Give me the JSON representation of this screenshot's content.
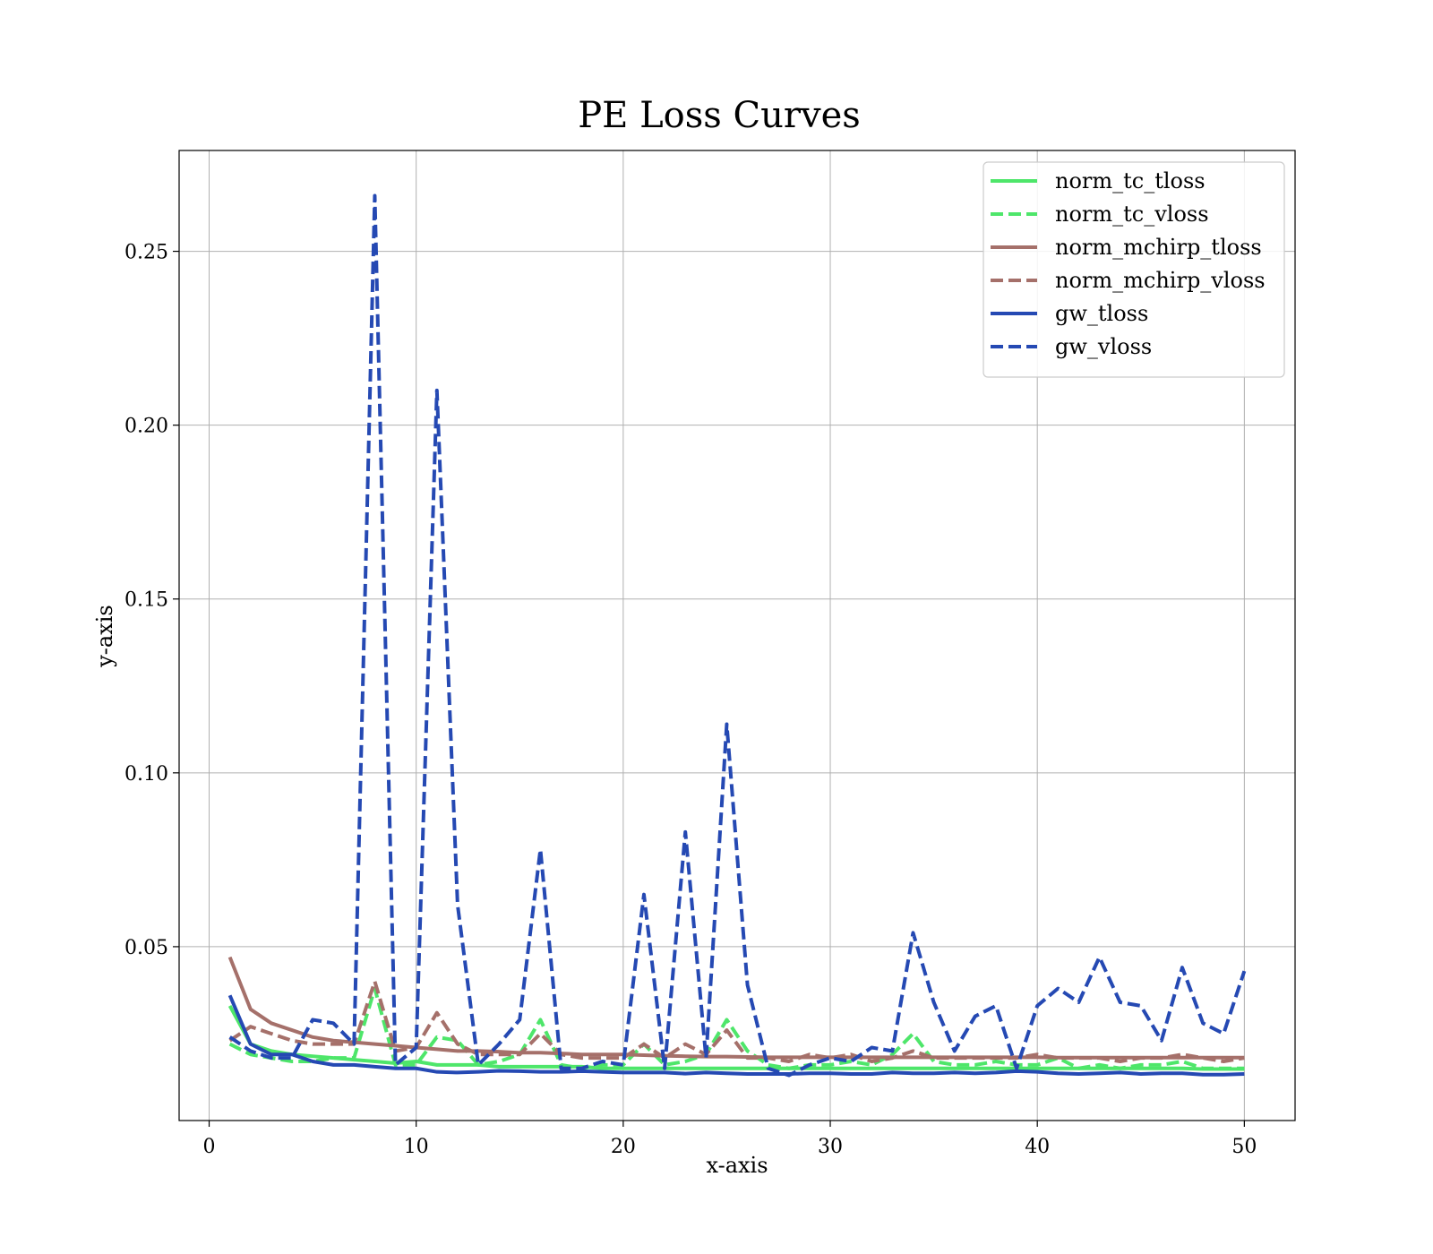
{
  "chart_data": {
    "type": "line",
    "title": "PE Loss Curves",
    "xlabel": "x-axis",
    "ylabel": "y-axis",
    "xlim": [
      -1.45,
      52.45
    ],
    "ylim": [
      0.0,
      0.279
    ],
    "xticks": [
      0,
      10,
      20,
      30,
      40,
      50
    ],
    "yticks": [
      0.05,
      0.1,
      0.15,
      0.2,
      0.25
    ],
    "xtick_labels": [
      "0",
      "10",
      "20",
      "30",
      "40",
      "50"
    ],
    "ytick_labels": [
      "0.05",
      "0.10",
      "0.15",
      "0.20",
      "0.25"
    ],
    "grid": true,
    "legend_position": "top-right",
    "x": [
      1,
      2,
      3,
      4,
      5,
      6,
      7,
      8,
      9,
      10,
      11,
      12,
      13,
      14,
      15,
      16,
      17,
      18,
      19,
      20,
      21,
      22,
      23,
      24,
      25,
      26,
      27,
      28,
      29,
      30,
      31,
      32,
      33,
      34,
      35,
      36,
      37,
      38,
      39,
      40,
      41,
      42,
      43,
      44,
      45,
      46,
      47,
      48,
      49,
      50
    ],
    "series": [
      {
        "name": "norm_tc_tloss",
        "color": "#4ee66a",
        "dash": "solid",
        "values": [
          0.033,
          0.022,
          0.02,
          0.019,
          0.0185,
          0.018,
          0.0175,
          0.017,
          0.0165,
          0.017,
          0.016,
          0.016,
          0.016,
          0.0155,
          0.0155,
          0.0155,
          0.0155,
          0.0155,
          0.015,
          0.015,
          0.015,
          0.015,
          0.015,
          0.015,
          0.015,
          0.015,
          0.015,
          0.015,
          0.015,
          0.015,
          0.015,
          0.015,
          0.015,
          0.015,
          0.015,
          0.015,
          0.015,
          0.015,
          0.015,
          0.015,
          0.015,
          0.015,
          0.015,
          0.015,
          0.015,
          0.015,
          0.015,
          0.0148,
          0.0148,
          0.0148
        ]
      },
      {
        "name": "norm_tc_vloss",
        "color": "#4ee66a",
        "dash": "dashed",
        "values": [
          0.022,
          0.019,
          0.018,
          0.017,
          0.017,
          0.018,
          0.018,
          0.038,
          0.016,
          0.016,
          0.024,
          0.023,
          0.016,
          0.017,
          0.019,
          0.029,
          0.016,
          0.015,
          0.016,
          0.016,
          0.022,
          0.016,
          0.017,
          0.019,
          0.029,
          0.02,
          0.016,
          0.015,
          0.016,
          0.016,
          0.017,
          0.016,
          0.019,
          0.025,
          0.017,
          0.016,
          0.016,
          0.017,
          0.016,
          0.016,
          0.018,
          0.015,
          0.016,
          0.015,
          0.016,
          0.016,
          0.017,
          0.015,
          0.015,
          0.015
        ]
      },
      {
        "name": "norm_mchirp_tloss",
        "color": "#a5706a",
        "dash": "solid",
        "values": [
          0.047,
          0.032,
          0.028,
          0.026,
          0.024,
          0.023,
          0.0225,
          0.022,
          0.0215,
          0.021,
          0.0205,
          0.02,
          0.02,
          0.0198,
          0.0195,
          0.0195,
          0.0193,
          0.019,
          0.019,
          0.019,
          0.0188,
          0.0186,
          0.0185,
          0.0184,
          0.0184,
          0.0183,
          0.0182,
          0.0182,
          0.0182,
          0.0182,
          0.0182,
          0.0182,
          0.0182,
          0.0182,
          0.0182,
          0.0182,
          0.0182,
          0.0182,
          0.0182,
          0.0182,
          0.0181,
          0.0181,
          0.0181,
          0.0181,
          0.0181,
          0.0181,
          0.0181,
          0.0181,
          0.0181,
          0.0181
        ]
      },
      {
        "name": "norm_mchirp_vloss",
        "color": "#a5706a",
        "dash": "dashed",
        "values": [
          0.023,
          0.027,
          0.025,
          0.023,
          0.022,
          0.022,
          0.022,
          0.04,
          0.02,
          0.021,
          0.031,
          0.022,
          0.019,
          0.019,
          0.019,
          0.025,
          0.019,
          0.018,
          0.018,
          0.018,
          0.022,
          0.018,
          0.022,
          0.019,
          0.026,
          0.018,
          0.018,
          0.017,
          0.019,
          0.018,
          0.019,
          0.017,
          0.018,
          0.02,
          0.018,
          0.018,
          0.018,
          0.018,
          0.018,
          0.019,
          0.018,
          0.018,
          0.018,
          0.017,
          0.018,
          0.018,
          0.019,
          0.018,
          0.017,
          0.018
        ]
      },
      {
        "name": "gw_tloss",
        "color": "#2549b3",
        "dash": "solid",
        "values": [
          0.036,
          0.022,
          0.019,
          0.019,
          0.017,
          0.016,
          0.016,
          0.0155,
          0.015,
          0.015,
          0.014,
          0.0138,
          0.014,
          0.0143,
          0.0142,
          0.014,
          0.014,
          0.0142,
          0.014,
          0.0138,
          0.0138,
          0.0138,
          0.0135,
          0.0138,
          0.0136,
          0.0134,
          0.0134,
          0.0134,
          0.0136,
          0.0136,
          0.0134,
          0.0134,
          0.0138,
          0.0136,
          0.0136,
          0.0138,
          0.0136,
          0.0138,
          0.0142,
          0.014,
          0.0136,
          0.0134,
          0.0136,
          0.0138,
          0.0134,
          0.0136,
          0.0136,
          0.0132,
          0.0132,
          0.0134
        ]
      },
      {
        "name": "gw_vloss",
        "color": "#2549b3",
        "dash": "dashed",
        "values": [
          0.024,
          0.02,
          0.018,
          0.018,
          0.029,
          0.028,
          0.022,
          0.266,
          0.016,
          0.021,
          0.21,
          0.062,
          0.016,
          0.022,
          0.029,
          0.078,
          0.015,
          0.015,
          0.017,
          0.016,
          0.065,
          0.015,
          0.083,
          0.018,
          0.114,
          0.039,
          0.015,
          0.013,
          0.016,
          0.018,
          0.017,
          0.021,
          0.02,
          0.054,
          0.034,
          0.02,
          0.03,
          0.033,
          0.015,
          0.033,
          0.038,
          0.034,
          0.047,
          0.034,
          0.033,
          0.023,
          0.044,
          0.028,
          0.025,
          0.043
        ]
      }
    ]
  }
}
